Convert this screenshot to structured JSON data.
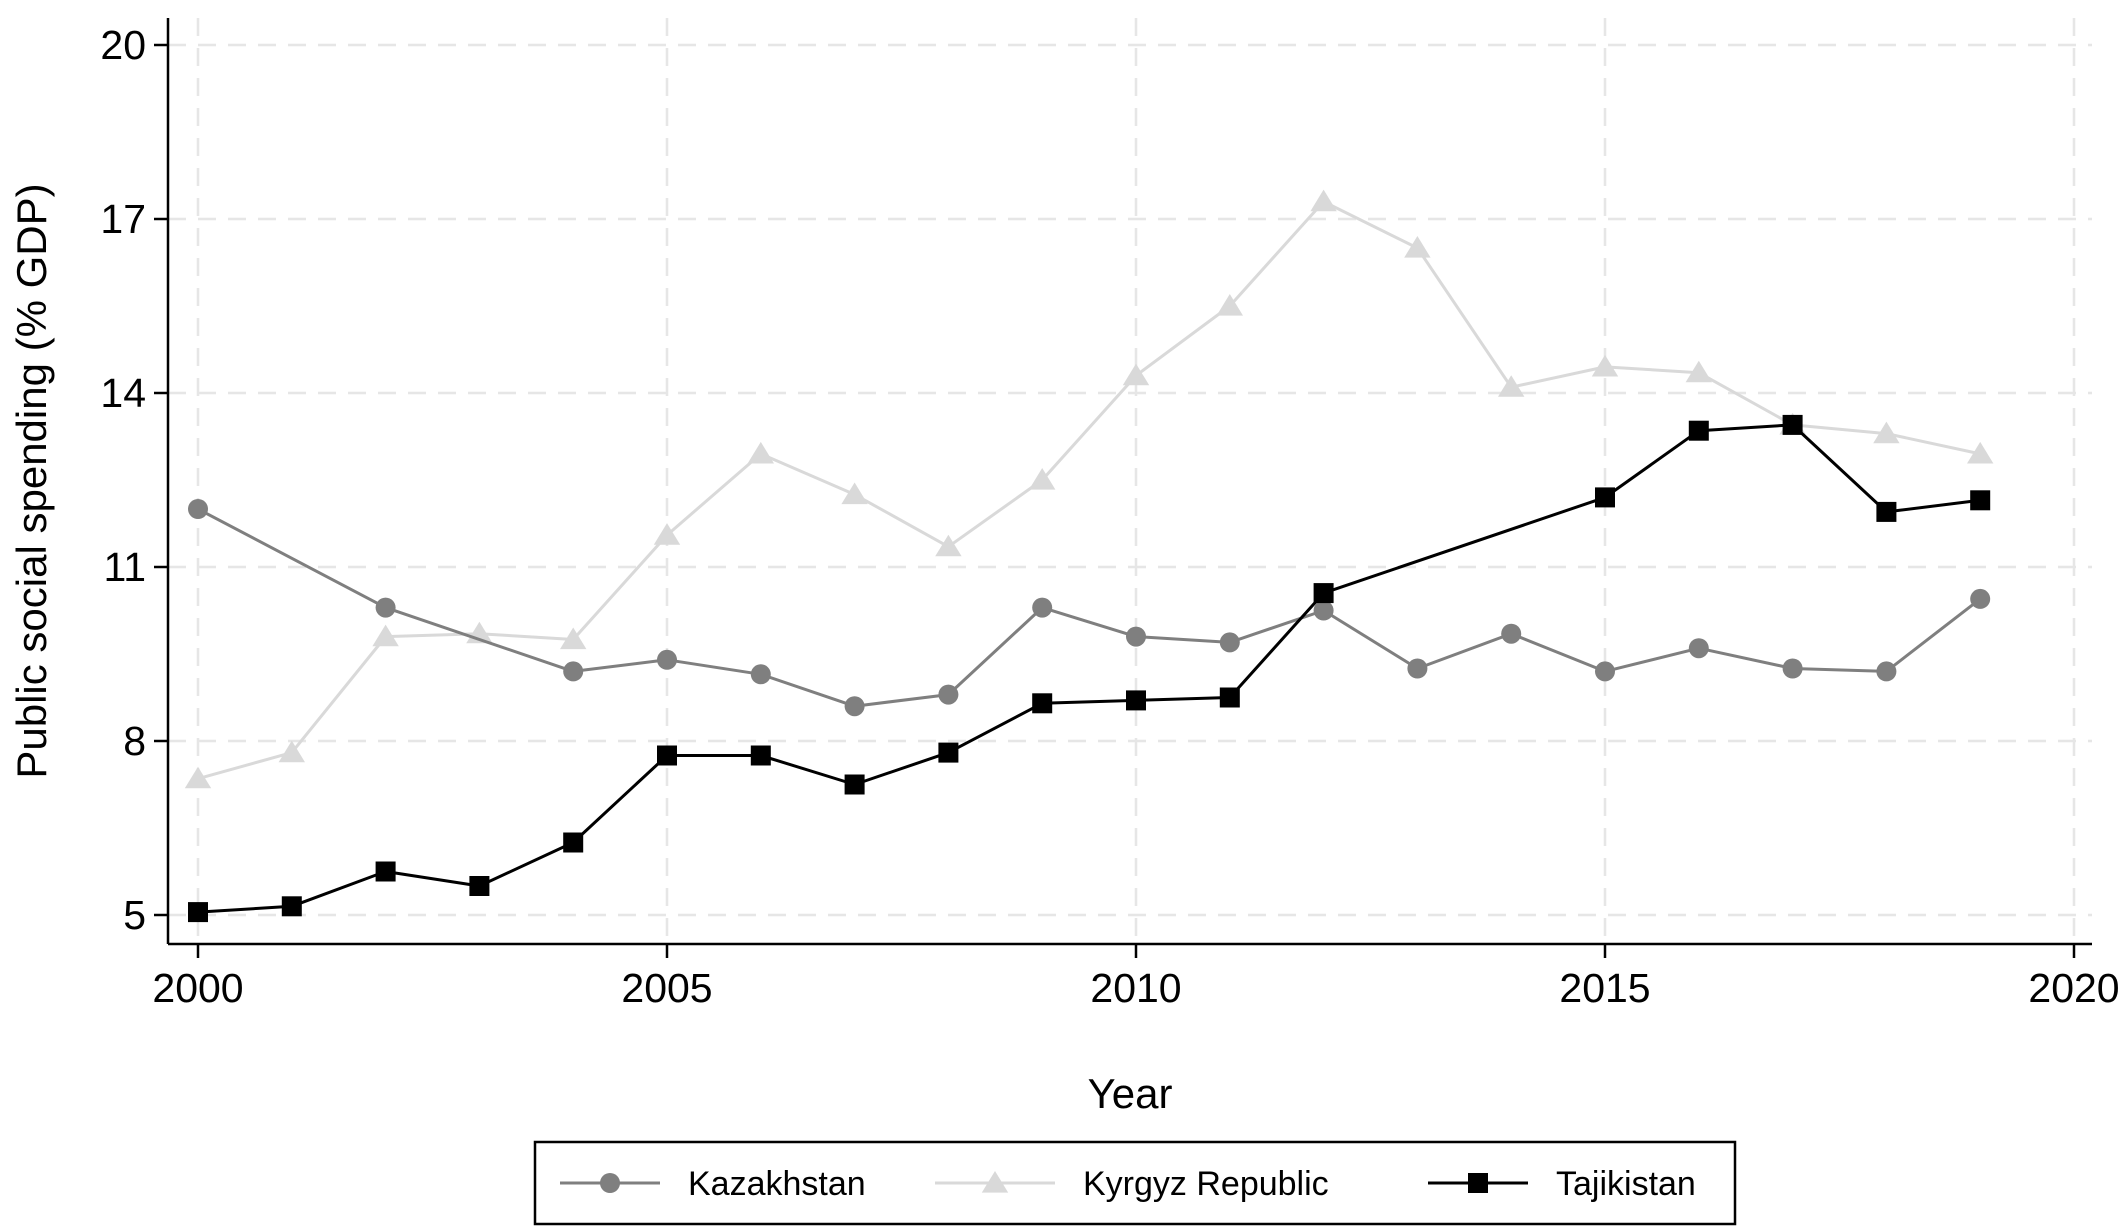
{
  "chart_data": {
    "type": "line",
    "title": "",
    "xlabel": "Year",
    "ylabel": "Public social spending (% GDP)",
    "xlim": [
      2000,
      2020
    ],
    "ylim": [
      5,
      20
    ],
    "xticks": [
      2000,
      2005,
      2010,
      2015,
      2020
    ],
    "yticks": [
      5,
      8,
      11,
      14,
      17,
      20
    ],
    "xtick_labels": [
      "2000",
      "2005",
      "2010",
      "2015",
      "2020"
    ],
    "ytick_labels": [
      "5",
      "8",
      "11",
      "14",
      "17",
      "20"
    ],
    "grid": true,
    "legend_position": "bottom",
    "series": [
      {
        "name": "Kazakhstan",
        "color": "#7f7f7f",
        "marker": "circle",
        "x": [
          2000,
          2002,
          2004,
          2005,
          2006,
          2007,
          2008,
          2009,
          2010,
          2011,
          2012,
          2013,
          2014,
          2015,
          2016,
          2017,
          2018,
          2019
        ],
        "y": [
          12.0,
          10.3,
          9.2,
          9.4,
          9.15,
          8.6,
          8.8,
          10.3,
          9.8,
          9.7,
          10.25,
          9.25,
          9.85,
          9.2,
          9.6,
          9.25,
          9.2,
          10.45
        ]
      },
      {
        "name": "Kyrgyz Republic",
        "color": "#d9d9d9",
        "marker": "triangle",
        "x": [
          2000,
          2001,
          2002,
          2003,
          2004,
          2005,
          2006,
          2007,
          2008,
          2009,
          2010,
          2011,
          2012,
          2013,
          2014,
          2015,
          2016,
          2017,
          2018,
          2019
        ],
        "y": [
          7.35,
          7.8,
          9.8,
          9.85,
          9.75,
          11.55,
          12.95,
          12.25,
          11.35,
          12.5,
          14.3,
          15.5,
          17.3,
          16.5,
          14.1,
          14.45,
          14.35,
          13.45,
          13.3,
          12.95
        ]
      },
      {
        "name": "Tajikistan",
        "color": "#000000",
        "marker": "square",
        "x": [
          2000,
          2001,
          2002,
          2003,
          2004,
          2005,
          2006,
          2007,
          2008,
          2009,
          2010,
          2011,
          2012,
          2015,
          2016,
          2017,
          2018,
          2019
        ],
        "y": [
          5.05,
          5.15,
          5.75,
          5.5,
          6.25,
          7.75,
          7.75,
          7.25,
          7.8,
          8.65,
          8.7,
          8.75,
          10.55,
          12.2,
          13.35,
          13.45,
          11.95,
          12.15
        ]
      }
    ]
  }
}
